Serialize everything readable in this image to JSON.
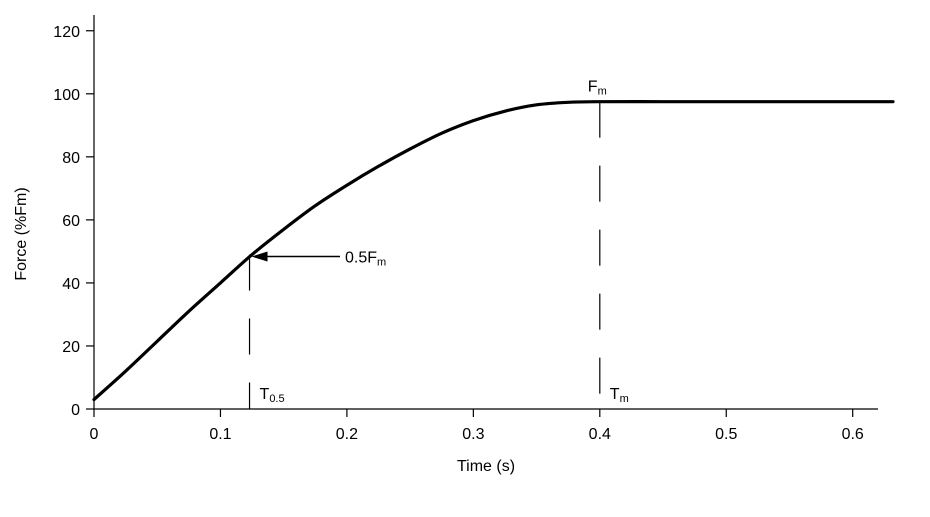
{
  "chart_data": {
    "type": "line",
    "xlabel": "Time (s)",
    "ylabel": "Force (%Fm)",
    "xlim": [
      0,
      0.62
    ],
    "ylim": [
      0,
      125
    ],
    "x_ticks": [
      0,
      0.1,
      0.2,
      0.3,
      0.4,
      0.5,
      0.6
    ],
    "x_tick_labels": [
      "0",
      "0.1",
      "0.2",
      "0.3",
      "0.4",
      "0.5",
      "0.6"
    ],
    "y_ticks": [
      0,
      20,
      40,
      60,
      80,
      100,
      120
    ],
    "y_tick_labels": [
      "0",
      "20",
      "40",
      "60",
      "80",
      "100",
      "120"
    ],
    "grid": false,
    "series": [
      {
        "x": [
          0,
          0.025,
          0.05,
          0.075,
          0.1,
          0.125,
          0.15,
          0.175,
          0.2,
          0.225,
          0.25,
          0.275,
          0.3,
          0.325,
          0.35,
          0.375,
          0.4,
          0.45,
          0.5,
          0.55,
          0.6,
          0.62
        ],
        "y": [
          3,
          12,
          21.5,
          31,
          40,
          49,
          57,
          64.5,
          71,
          77,
          82.5,
          87.5,
          91.5,
          94.5,
          96.5,
          97.3,
          97.5,
          97.5,
          97.5,
          97.5,
          97.5,
          97.5
        ],
        "color": "#000000"
      }
    ],
    "markers": [
      {
        "x": 0.123,
        "y": 49,
        "label_main": "T",
        "label_sub": "0.5"
      },
      {
        "x": 0.4,
        "y": 97.5,
        "label_main": "T",
        "label_sub": "m"
      }
    ],
    "annotations": {
      "half_force": {
        "main": "0.5F",
        "sub": "m"
      },
      "max_force": {
        "main": "F",
        "sub": "m"
      }
    }
  }
}
